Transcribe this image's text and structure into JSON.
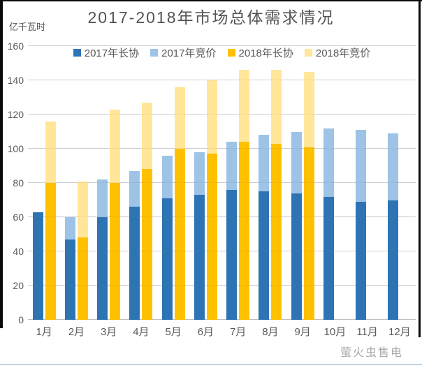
{
  "page": {
    "watermark": "萤火虫售电"
  },
  "chart_data": {
    "type": "bar",
    "variant": "grouped-stacked-column",
    "title": "2017-2018年市场总体需求情况",
    "unit_label": "亿千瓦时",
    "xlabel": "",
    "ylabel": "亿千瓦时",
    "ylim": [
      0,
      160
    ],
    "y_ticks": [
      160,
      140,
      120,
      100,
      80,
      60,
      40,
      20,
      0
    ],
    "grid": true,
    "legend_position": "top",
    "categories": [
      "1月",
      "2月",
      "3月",
      "4月",
      "5月",
      "6月",
      "7月",
      "8月",
      "9月",
      "10月",
      "11月",
      "12月"
    ],
    "series": [
      {
        "name": "2017年长协",
        "stack": "2017",
        "color": "#2E74B5",
        "values": [
          63,
          47,
          60,
          66,
          71,
          73,
          76,
          75,
          74,
          72,
          69,
          70
        ]
      },
      {
        "name": "2017年竞价",
        "stack": "2017",
        "color": "#9DC3E6",
        "values": [
          0,
          13,
          22,
          21,
          25,
          25,
          28,
          33,
          36,
          40,
          42,
          39
        ]
      },
      {
        "name": "2018年长协",
        "stack": "2018",
        "color": "#FFC000",
        "values": [
          80,
          48,
          80,
          88,
          100,
          97,
          104,
          103,
          101,
          null,
          null,
          null
        ]
      },
      {
        "name": "2018年竞价",
        "stack": "2018",
        "color": "#FFE699",
        "values": [
          36,
          33,
          43,
          39,
          36,
          43,
          42,
          43,
          44,
          null,
          null,
          null
        ]
      }
    ],
    "stack_totals": {
      "2017": [
        63,
        60,
        82,
        87,
        96,
        98,
        104,
        108,
        110,
        112,
        111,
        109
      ],
      "2018": [
        116,
        81,
        123,
        127,
        136,
        140,
        146,
        146,
        145,
        null,
        null,
        null
      ]
    },
    "colors": {
      "grid": "#D9D9D9",
      "axis": "#BFBFBF",
      "text": "#595959",
      "title": "#545454",
      "watermark": "#A9A9A9",
      "bottom_rule": "#BFD3E6",
      "frame": "#0A0A0A"
    }
  }
}
